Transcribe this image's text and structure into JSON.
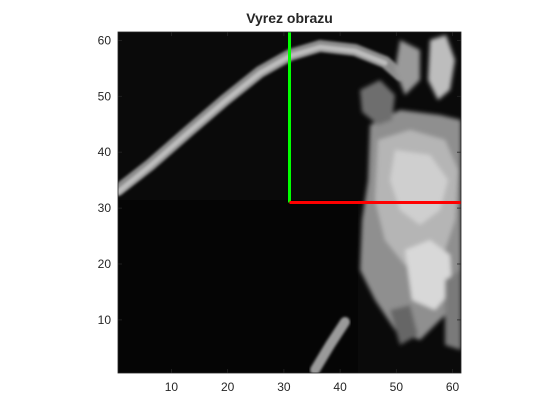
{
  "chart_data": {
    "type": "image",
    "title": "Vyrez obrazu",
    "xlim": [
      0.5,
      61.5
    ],
    "ylim": [
      0.5,
      61.5
    ],
    "x_ticks": [
      10,
      20,
      30,
      40,
      50,
      60
    ],
    "y_ticks": [
      10,
      20,
      30,
      40,
      50,
      60
    ],
    "x_tick_labels": [
      "10",
      "20",
      "30",
      "40",
      "50",
      "60"
    ],
    "y_tick_labels": [
      "10",
      "20",
      "30",
      "40",
      "50",
      "60"
    ],
    "image": {
      "colormap": "gray",
      "description_of_content": "grayscale crop: dark background, bright diagonal streak top-left, bright textured mass on right, small bright streak near bottom"
    },
    "overlays": [
      {
        "name": "vertical marker",
        "color": "#00ff00",
        "x": [
          31,
          31
        ],
        "y": [
          31,
          61.5
        ]
      },
      {
        "name": "horizontal marker",
        "color": "#ff0000",
        "x": [
          31,
          61.5
        ],
        "y": [
          31,
          31
        ]
      }
    ]
  }
}
